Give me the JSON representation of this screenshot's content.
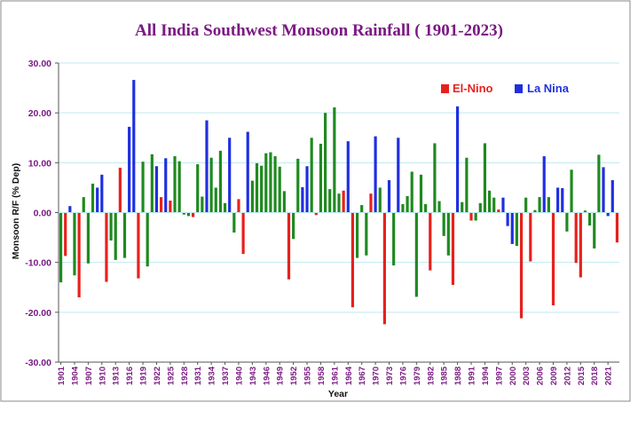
{
  "chart_data": {
    "type": "bar",
    "title": "All India Southwest Monsoon Rainfall ( 1901-2023)",
    "xlabel": "Year",
    "ylabel": "Monsoon R/F (% Dep)",
    "ylim": [
      -30,
      30
    ],
    "yticks": [
      "30.00",
      "20.00",
      "10.00",
      "0.00",
      "-10.00",
      "-20.00",
      "-30.00"
    ],
    "xtick_labels": [
      "1901",
      "1904",
      "1907",
      "1910",
      "1913",
      "1916",
      "1919",
      "1922",
      "1925",
      "1928",
      "1931",
      "1934",
      "1937",
      "1940",
      "1943",
      "1946",
      "1949",
      "1952",
      "1955",
      "1958",
      "1961",
      "1964",
      "1967",
      "1970",
      "1973",
      "1976",
      "1979",
      "1982",
      "1985",
      "1988",
      "1991",
      "1994",
      "1997",
      "2000",
      "2003",
      "2006",
      "2009",
      "2012",
      "2015",
      "2018",
      "2021"
    ],
    "grid": true,
    "legend_position": "top-right",
    "legend": [
      {
        "name": "El-Nino",
        "color": "#e8201c"
      },
      {
        "name": "La Nina",
        "color": "#1f2fe0"
      }
    ],
    "neutral_color": "#1f8a1f",
    "colors": {
      "title": "#7a1a82",
      "tick": "#7a1a82",
      "grid": "#bfe9ee",
      "axis": "#555555"
    },
    "first_year": 1901,
    "values": [
      -14,
      -8.7,
      1.3,
      -12.6,
      -17,
      3.1,
      -10.2,
      5.8,
      5,
      7.6,
      -13.9,
      -5.6,
      -9.5,
      9,
      -9.1,
      17.2,
      26.6,
      -13.2,
      10.2,
      -10.8,
      11.7,
      9.3,
      3.1,
      10.9,
      2.4,
      11.3,
      10.3,
      -0.4,
      -0.7,
      -0.9,
      9.7,
      3.2,
      18.5,
      11,
      5,
      12.4,
      1.9,
      15,
      -4,
      2.7,
      -8.3,
      16.2,
      6.4,
      9.9,
      9.4,
      11.9,
      12.1,
      11.3,
      9.2,
      4.3,
      -13.4,
      -5.3,
      10.8,
      5.1,
      9.3,
      15,
      -0.5,
      13.8,
      20,
      4.7,
      21.1,
      3.8,
      4.4,
      14.3,
      -19,
      -9.1,
      1.5,
      -8.6,
      3.8,
      15.3,
      5,
      -22.4,
      6.5,
      -10.6,
      15,
      1.7,
      3.3,
      8.2,
      -16.9,
      7.6,
      1.7,
      -11.6,
      13.9,
      2.3,
      -4.7,
      -8.6,
      -14.5,
      21.3,
      2.1,
      11,
      -1.6,
      -1.6,
      1.9,
      13.9,
      4.4,
      3,
      0.6,
      3,
      -2.7,
      -6.3,
      -6.7,
      -21.2,
      3,
      -9.8,
      0.5,
      3.1,
      11.3,
      3.1,
      -18.6,
      5,
      4.9,
      -3.8,
      8.6,
      -10.1,
      -13,
      0.4,
      -2.6,
      -7.2,
      11.6,
      9.1,
      -0.7,
      6.5,
      -6
    ],
    "el_nino_years": [
      1902,
      1905,
      1911,
      1914,
      1918,
      1923,
      1925,
      1930,
      1940,
      1941,
      1951,
      1957,
      1963,
      1965,
      1969,
      1972,
      1982,
      1987,
      1991,
      1997,
      2002,
      2004,
      2009,
      2014,
      2015,
      2023
    ],
    "la_nina_years": [
      1903,
      1909,
      1910,
      1916,
      1917,
      1922,
      1924,
      1933,
      1938,
      1942,
      1954,
      1955,
      1964,
      1970,
      1973,
      1975,
      1988,
      1998,
      1999,
      2000,
      2007,
      2010,
      2011,
      2020,
      2021,
      2022
    ]
  }
}
